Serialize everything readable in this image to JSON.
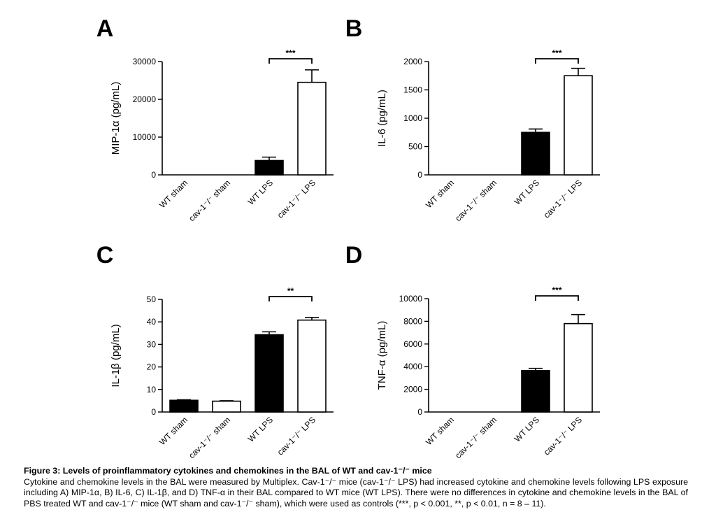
{
  "figure": {
    "caption_title": "Figure 3: Levels of proinflammatory cytokines and chemokines in the BAL of WT and cav-1⁻/⁻ mice",
    "caption_body": "Cytokine and chemokine levels in the BAL were measured by Multiplex. Cav-1⁻/⁻ mice (cav-1⁻/⁻ LPS) had increased cytokine and chemokine levels following LPS exposure including A) MIP-1α, B) IL-6, C) IL-1β, and D) TNF-α in their BAL compared to WT mice (WT LPS). There were no differences in cytokine and chemokine levels in the BAL of PBS treated WT and cav-1⁻/⁻ mice (WT sham and cav-1⁻/⁻ sham), which were used as controls (***, p < 0.001, **, p < 0.01, n = 8 – 11)."
  },
  "colors": {
    "filled_bar": "#000000",
    "open_bar": "#ffffff",
    "axis": "#000000"
  },
  "chart_data": [
    {
      "type": "bar",
      "panel": "A",
      "title": "",
      "xlabel": "",
      "ylabel": "MIP-1α (pg/mL)",
      "categories": [
        "WT sham",
        "cav-1⁻/⁻ sham",
        "WT LPS",
        "cav-1⁻/⁻ LPS"
      ],
      "values": [
        0,
        0,
        3800,
        24500
      ],
      "errors": [
        0,
        0,
        900,
        3300
      ],
      "fills": [
        "filled",
        "open",
        "filled",
        "open"
      ],
      "ylim": [
        0,
        30000
      ],
      "yticks": [
        0,
        10000,
        20000,
        30000
      ],
      "significance": {
        "from": 2,
        "to": 3,
        "label": "***"
      },
      "grid": false
    },
    {
      "type": "bar",
      "panel": "B",
      "title": "",
      "xlabel": "",
      "ylabel": "IL-6 (pg/mL)",
      "categories": [
        "WT sham",
        "cav-1⁻/⁻ sham",
        "WT LPS",
        "cav-1⁻/⁻ LPS"
      ],
      "values": [
        0,
        0,
        750,
        1750
      ],
      "errors": [
        0,
        0,
        60,
        130
      ],
      "fills": [
        "filled",
        "open",
        "filled",
        "open"
      ],
      "ylim": [
        0,
        2000
      ],
      "yticks": [
        0,
        500,
        1000,
        1500,
        2000
      ],
      "significance": {
        "from": 2,
        "to": 3,
        "label": "***"
      },
      "grid": false
    },
    {
      "type": "bar",
      "panel": "C",
      "title": "",
      "xlabel": "",
      "ylabel": "IL-1β (pg/mL)",
      "categories": [
        "WT sham",
        "cav-1⁻/⁻ sham",
        "WT LPS",
        "cav-1⁻/⁻ LPS"
      ],
      "values": [
        5.2,
        4.8,
        34.3,
        40.8
      ],
      "errors": [
        0.2,
        0.2,
        1.3,
        1.2
      ],
      "fills": [
        "filled",
        "open",
        "filled",
        "open"
      ],
      "ylim": [
        0,
        50
      ],
      "yticks": [
        0,
        10,
        20,
        30,
        40,
        50
      ],
      "significance": {
        "from": 2,
        "to": 3,
        "label": "**"
      },
      "grid": false
    },
    {
      "type": "bar",
      "panel": "D",
      "title": "",
      "xlabel": "",
      "ylabel": "TNF-α (pg/mL)",
      "categories": [
        "WT sham",
        "cav-1⁻/⁻ sham",
        "WT LPS",
        "cav-1⁻/⁻ LPS"
      ],
      "values": [
        0,
        0,
        3650,
        7800
      ],
      "errors": [
        0,
        0,
        200,
        800
      ],
      "fills": [
        "filled",
        "open",
        "filled",
        "open"
      ],
      "ylim": [
        0,
        10000
      ],
      "yticks": [
        0,
        2000,
        4000,
        6000,
        8000,
        10000
      ],
      "significance": {
        "from": 2,
        "to": 3,
        "label": "***"
      },
      "grid": false
    }
  ]
}
